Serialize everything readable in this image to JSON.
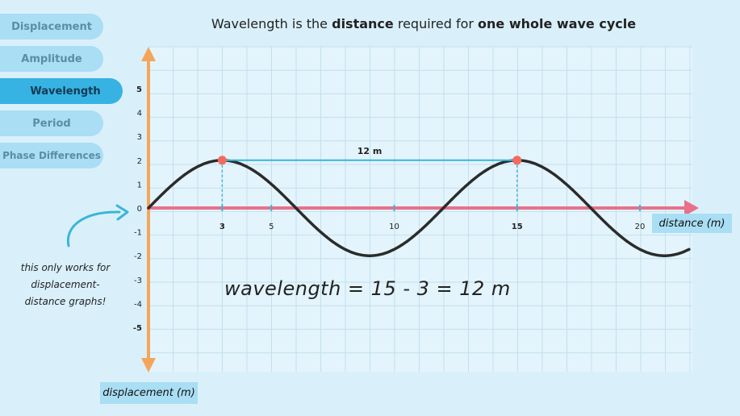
{
  "tabs": [
    {
      "label": "Displacement",
      "active": false
    },
    {
      "label": "Amplitude",
      "active": false
    },
    {
      "label": "Wavelength",
      "active": true
    },
    {
      "label": "Period",
      "active": false
    },
    {
      "label": "Phase Differences",
      "active": false
    }
  ],
  "title": {
    "part1": "Wavelength is the ",
    "bold1": "distance",
    "part2": " required for ",
    "bold2": "one whole wave cycle"
  },
  "note": "this only works for displacement-distance graphs!",
  "equation": "wavelength = 15 - 3 = 12 m",
  "colors": {
    "background": "#d9f0fb",
    "tab": "#a9def4",
    "tab_active": "#36b3e2",
    "y_axis": "#f5a55a",
    "x_axis": "#e8708a",
    "wave": "#2b2b2b",
    "peak": "#f36b5f",
    "wavelength_line": "#39b6d8",
    "note_arrow": "#39b6d8",
    "grid": "#c3dfee"
  },
  "chart_data": {
    "type": "line",
    "xlabel": "distance (m)",
    "ylabel": "displacement (m)",
    "xlim": [
      0,
      22
    ],
    "ylim": [
      -5,
      5
    ],
    "x_ticks": [
      3,
      5,
      10,
      15,
      20
    ],
    "x_ticks_bold": [
      3,
      15
    ],
    "y_ticks": [
      5,
      4,
      3,
      2,
      1,
      0,
      -1,
      -2,
      -3,
      -4,
      -5
    ],
    "y_ticks_bold": [
      5,
      -5
    ],
    "series": [
      {
        "amplitude": 2,
        "wavelength": 12,
        "x_start": 0,
        "x_end": 22,
        "points": [
          [
            0,
            0
          ],
          [
            3,
            2
          ],
          [
            6,
            0
          ],
          [
            9,
            -2
          ],
          [
            12,
            0
          ],
          [
            15,
            2
          ],
          [
            18,
            0
          ],
          [
            21,
            -2
          ],
          [
            22,
            -1.73
          ]
        ]
      }
    ],
    "peaks": [
      [
        3,
        2
      ],
      [
        15,
        2
      ]
    ],
    "annotation": "12 m",
    "grid": true
  }
}
